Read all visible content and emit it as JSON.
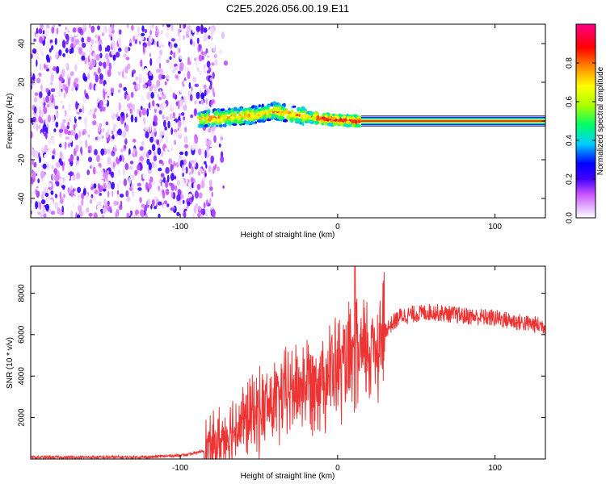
{
  "title": "C2E5.2026.056.00.19.E11",
  "chart_data": [
    {
      "type": "heatmap",
      "name": "spectrogram",
      "xlabel": "Height of straight line (km)",
      "ylabel": "Frequency (Hz)",
      "xlim": [
        -195,
        132
      ],
      "ylim": [
        -50,
        50
      ],
      "xticks": [
        -100,
        0,
        100
      ],
      "yticks": [
        -40,
        -20,
        0,
        20,
        40
      ],
      "noise_region_x": [
        -195,
        -77
      ],
      "signal_region_x": [
        -88,
        15
      ],
      "tone_region_x": [
        15,
        132
      ],
      "signal_center_freq_hz": [
        {
          "x": -85,
          "f": 1
        },
        {
          "x": -70,
          "f": 2
        },
        {
          "x": -55,
          "f": 3
        },
        {
          "x": -40,
          "f": 5
        },
        {
          "x": -25,
          "f": 3
        },
        {
          "x": -10,
          "f": 1
        },
        {
          "x": 0,
          "f": 0.5
        },
        {
          "x": 15,
          "f": 0
        }
      ],
      "colorbar": {
        "label": "Normalized spectral amplitude",
        "range": [
          0.0,
          1.0
        ],
        "ticks": [
          "0.0",
          "0.2",
          "0.4",
          "0.6",
          "0.8"
        ],
        "tick_values": [
          0.0,
          0.2,
          0.4,
          0.6,
          0.8
        ],
        "colors": [
          "#ffffff",
          "#cc55ff",
          "#4400ff",
          "#0000ff",
          "#00ccff",
          "#00ff66",
          "#aaff00",
          "#ffff00",
          "#ff8800",
          "#ff0000",
          "#ff0088"
        ]
      }
    },
    {
      "type": "line",
      "name": "snr",
      "xlabel": "Height of straight line (km)",
      "ylabel": "SNR (10 * v/v)",
      "xlim": [
        -195,
        132
      ],
      "ylim": [
        0,
        9300
      ],
      "xticks": [
        -100,
        0,
        100
      ],
      "yticks": [
        2000,
        4000,
        6000,
        8000
      ],
      "color": "#ee3333",
      "trend": [
        {
          "x": -195,
          "y": 80
        },
        {
          "x": -120,
          "y": 90
        },
        {
          "x": -95,
          "y": 200
        },
        {
          "x": -80,
          "y": 500
        },
        {
          "x": -70,
          "y": 1200
        },
        {
          "x": -60,
          "y": 1800
        },
        {
          "x": -50,
          "y": 2300
        },
        {
          "x": -40,
          "y": 2700
        },
        {
          "x": -30,
          "y": 3300
        },
        {
          "x": -20,
          "y": 3700
        },
        {
          "x": -10,
          "y": 4000
        },
        {
          "x": 0,
          "y": 4300
        },
        {
          "x": 10,
          "y": 4600
        },
        {
          "x": 20,
          "y": 5300
        },
        {
          "x": 30,
          "y": 6200
        },
        {
          "x": 40,
          "y": 6900
        },
        {
          "x": 60,
          "y": 7100
        },
        {
          "x": 80,
          "y": 6900
        },
        {
          "x": 100,
          "y": 6800
        },
        {
          "x": 115,
          "y": 6600
        },
        {
          "x": 132,
          "y": 6400
        }
      ],
      "peak": {
        "x": 11,
        "y": 9300
      }
    }
  ]
}
